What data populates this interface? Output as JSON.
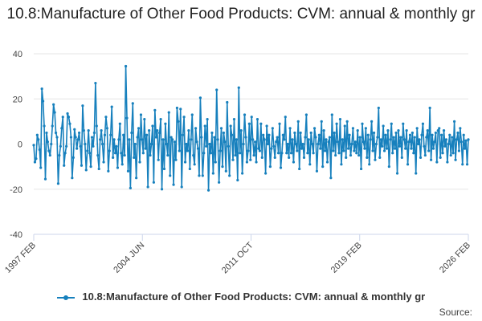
{
  "chart_data": {
    "type": "line",
    "title": "10.8:Manufacture of Other Food Products: CVM: annual & monthly gr",
    "xlabel": "",
    "ylabel": "",
    "ylim": [
      -40,
      40
    ],
    "y_ticks": [
      40,
      20,
      0,
      -20,
      -40
    ],
    "x_range": [
      "1997 FEB",
      "2026 FEB"
    ],
    "x_tick_labels": [
      "1997 FEB",
      "2004 JUN",
      "2011 OCT",
      "2019 FEB",
      "2026 FEB"
    ],
    "grid": "horizontal",
    "legend_position": "bottom",
    "series_color": "#1780bd",
    "series": [
      {
        "name": "10.8:Manufacture of Other Food Products: CVM: annual & monthly gr",
        "values": [
          -0.5,
          -8.0,
          -6.5,
          4.0,
          2.0,
          -2.5,
          -10.5,
          24.5,
          19.0,
          8.0,
          -15.5,
          5.0,
          1.0,
          -3.0,
          -5.0,
          0.0,
          8.0,
          17.5,
          14.0,
          5.0,
          3.0,
          -17.5,
          -5.0,
          -1.0,
          7.0,
          12.0,
          -9.5,
          -4.0,
          -1.0,
          13.5,
          12.0,
          9.0,
          3.0,
          -15.0,
          -6.0,
          6.5,
          3.0,
          -2.0,
          2.0,
          5.0,
          -1.0,
          -9.5,
          17.0,
          6.0,
          0.0,
          -11.5,
          -3.0,
          6.0,
          -4.0,
          -10.0,
          3.0,
          -1.0,
          5.0,
          27.0,
          8.0,
          -5.0,
          -11.0,
          2.0,
          6.0,
          0.0,
          -8.0,
          4.0,
          12.0,
          7.0,
          -12.0,
          -3.0,
          4.0,
          16.5,
          -6.0,
          2.0,
          -4.0,
          -1.0,
          -10.5,
          2.0,
          9.0,
          -4.0,
          -9.0,
          4.0,
          -5.0,
          34.5,
          11.5,
          -12.0,
          2.0,
          -19.5,
          5.0,
          18.0,
          -6.0,
          0.0,
          -15.0,
          3.0,
          7.0,
          -8.0,
          13.0,
          2.0,
          -4.0,
          11.0,
          -2.0,
          4.0,
          -19.0,
          6.0,
          -5.0,
          0.0,
          8.0,
          -17.0,
          15.0,
          3.0,
          6.0,
          -7.0,
          5.0,
          11.0,
          -20.0,
          2.0,
          -11.0,
          9.0,
          0.0,
          -5.0,
          14.0,
          -14.0,
          3.0,
          2.0,
          -18.0,
          1.0,
          -7.0,
          16.0,
          10.0,
          -3.0,
          15.5,
          -19.0,
          4.0,
          12.0,
          -8.0,
          0.0,
          -3.0,
          6.0,
          -11.0,
          2.0,
          13.0,
          -5.0,
          -9.0,
          7.0,
          1.0,
          -2.0,
          -14.0,
          20.5,
          3.0,
          -14.0,
          -4.0,
          8.0,
          -1.0,
          11.0,
          -20.5,
          0.0,
          -4.0,
          5.0,
          -13.0,
          3.0,
          -8.0,
          24.0,
          2.0,
          -17.0,
          -3.0,
          7.0,
          -10.0,
          5.0,
          1.0,
          -12.0,
          18.5,
          -1.0,
          -14.0,
          8.0,
          4.0,
          -7.0,
          11.0,
          -5.0,
          2.0,
          -16.0,
          25.0,
          -4.0,
          6.0,
          -13.0,
          0.0,
          13.0,
          3.0,
          -8.0,
          -3.0,
          9.0,
          -7.0,
          12.0,
          2.0,
          -5.0,
          1.0,
          -8.0,
          11.0,
          -2.0,
          -3.0,
          9.0,
          -6.0,
          4.0,
          2.0,
          -13.0,
          8.0,
          0.0,
          4.0,
          -10.0,
          -2.0,
          7.0,
          -1.0,
          -6.0,
          1.0,
          3.0,
          -4.0,
          9.0,
          -10.5,
          -4.0,
          4.0,
          2.0,
          12.0,
          -4.0,
          0.0,
          -6.0,
          7.0,
          -4.0,
          2.0,
          -8.0,
          5.0,
          0.0,
          -3.0,
          10.0,
          -11.0,
          5.0,
          -2.0,
          0.0,
          -6.0,
          3.0,
          13.0,
          -4.0,
          2.0,
          -9.0,
          5.0,
          0.0,
          -4.0,
          7.0,
          3.0,
          -12.0,
          0.0,
          4.0,
          -2.0,
          10.0,
          -10.0,
          6.0,
          -3.0,
          2.0,
          -8.0,
          1.0,
          3.0,
          -15.0,
          13.0,
          -3.0,
          5.0,
          -5.0,
          9.0,
          1.0,
          -4.0,
          11.0,
          -9.0,
          2.0,
          -3.0,
          8.0,
          -6.0,
          10.0,
          -2.0,
          4.0,
          -5.0,
          0.0,
          7.0,
          -3.0,
          1.0,
          -4.0,
          6.0,
          -5.0,
          3.0,
          -11.0,
          9.0,
          1.0,
          -2.0,
          7.0,
          -6.0,
          4.0,
          -9.0,
          2.0,
          10.0,
          -3.0,
          5.0,
          -7.0,
          0.0,
          3.0,
          16.0,
          -6.0,
          2.0,
          -1.0,
          8.0,
          -3.0,
          4.0,
          -2.0,
          6.0,
          -10.0,
          2.0,
          9.0,
          -4.0,
          3.0,
          -2.0,
          5.0,
          -13.0,
          6.0,
          -1.0,
          3.0,
          -6.0,
          9.0,
          2.0,
          -2.0,
          6.0,
          -9.0,
          1.0,
          4.0,
          -2.0,
          5.0,
          -4.0,
          3.0,
          -13.0,
          7.0,
          0.0,
          2.0,
          -6.0,
          4.0,
          9.0,
          -1.0,
          -5.0,
          3.0,
          6.0,
          -3.0,
          16.0,
          -7.0,
          4.0,
          -2.0,
          1.0,
          5.0,
          -8.0,
          6.0,
          7.0,
          -6.0,
          4.0,
          -4.0,
          6.0,
          -1.0,
          2.0,
          -8.0,
          0.0,
          4.0,
          -5.0,
          3.0,
          -4.0,
          10.0,
          -7.0,
          2.0,
          5.0,
          -3.0,
          7.0,
          1.0,
          -9.0,
          4.0,
          -2.0,
          1.5,
          -9.0,
          2.0
        ]
      }
    ]
  },
  "legend": {
    "label": "10.8:Manufacture of Other Food Products: CVM: annual & monthly gr"
  },
  "source": {
    "label": "Source:"
  }
}
